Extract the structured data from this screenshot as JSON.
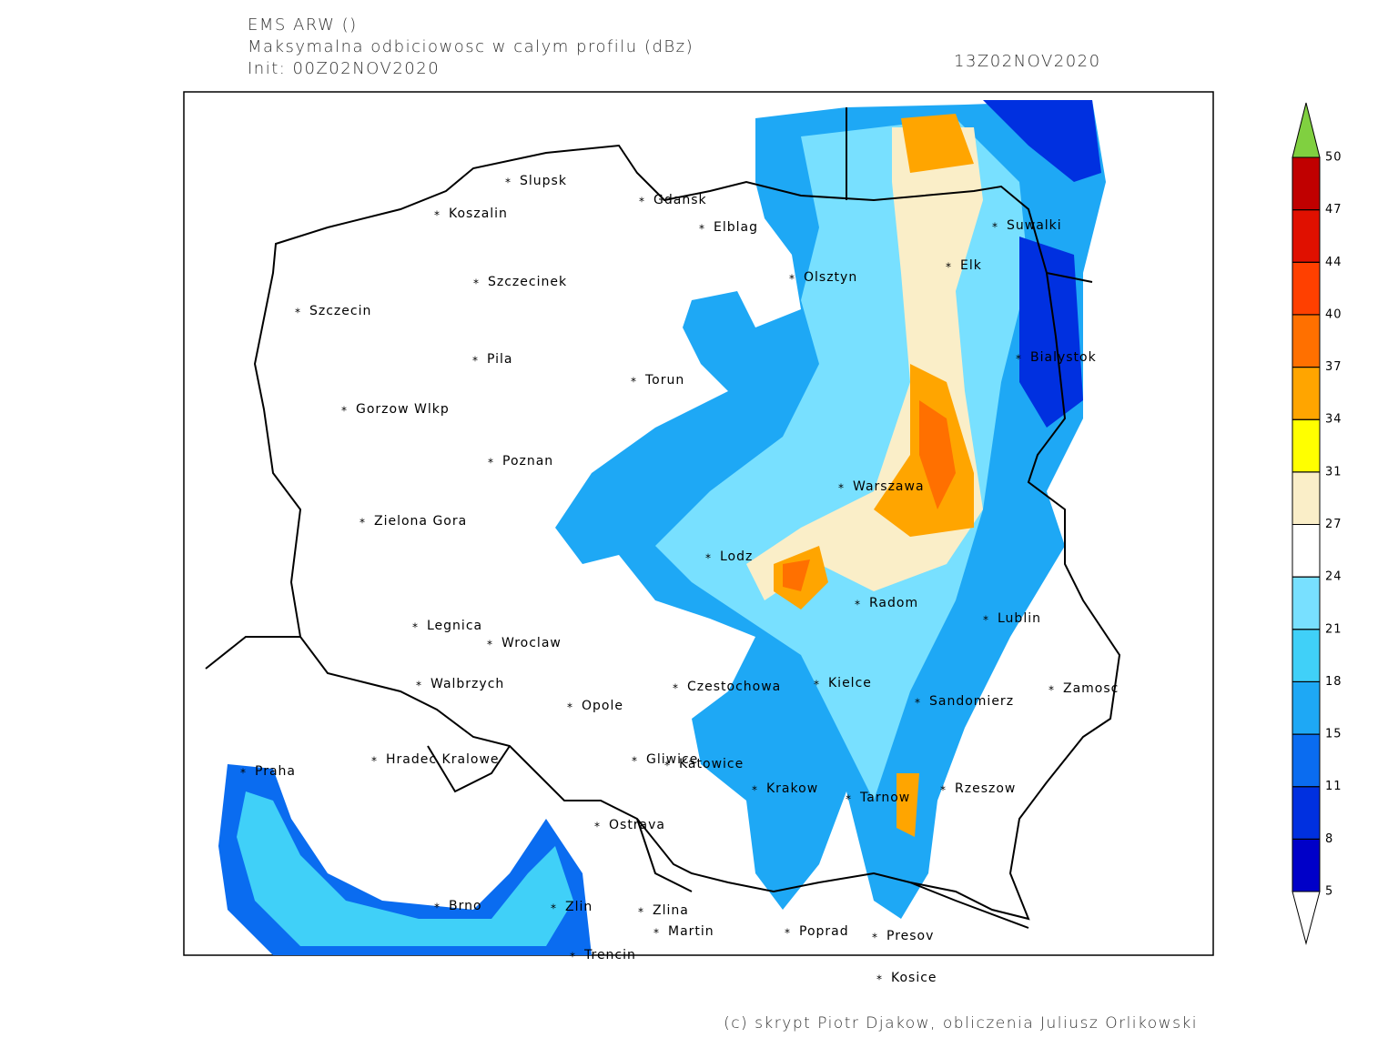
{
  "header": {
    "model": "EMS ARW ()",
    "field": "Maksymalna odbiciowosc w calym profilu (dBz)",
    "init": "Init: 00Z02NOV2020",
    "valid": "13Z02NOV2020"
  },
  "cities": [
    "Slupsk",
    "Koszalin",
    "Gdansk",
    "Elblag",
    "Szczecinek",
    "Szczecin",
    "Olsztyn",
    "Elk",
    "Suwalki",
    "Pila",
    "Torun",
    "Bialystok",
    "Gorzow Wlkp",
    "Poznan",
    "Warszawa",
    "Zielona Gora",
    "Lodz",
    "Radom",
    "Lublin",
    "Legnica",
    "Wroclaw",
    "Walbrzych",
    "Czestochowa",
    "Kielce",
    "Opole",
    "Sandomierz",
    "Zamosc",
    "Hradec Kralowe",
    "Gliwice",
    "Katowice",
    "Praha",
    "Krakow",
    "Tarnow",
    "Rzeszow",
    "Ostrava",
    "Brno",
    "Zlin",
    "Zlina",
    "Martin",
    "Poprad",
    "Presov",
    "Trencin",
    "Kosice"
  ],
  "colorbar": {
    "ticks": [
      5,
      8,
      11,
      15,
      18,
      21,
      24,
      27,
      31,
      34,
      37,
      40,
      44,
      47,
      50
    ],
    "colors": [
      "#0000c8",
      "#0030e0",
      "#0a6cf0",
      "#1ea8f5",
      "#40d0f8",
      "#78e0ff",
      "#ffffff",
      "#faeec8",
      "#ffff00",
      "#ffa500",
      "#ff7000",
      "#ff4000",
      "#e01000",
      "#c00000"
    ],
    "under_color": "#ffffff",
    "over_color": "#80d040"
  },
  "footer": "(c) skrypt Piotr Djakow, obliczenia Juliusz Orlikowski"
}
